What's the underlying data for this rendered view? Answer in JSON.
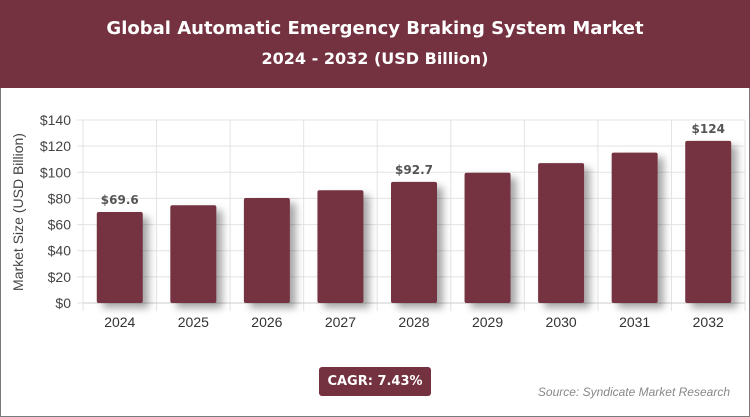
{
  "header": {
    "title": "Global Automatic Emergency Braking System Market",
    "subtitle": "2024 - 2032 (USD Billion)"
  },
  "chart_data": {
    "type": "bar",
    "title": "Global Automatic Emergency Braking System Market",
    "subtitle": "2024 - 2032 (USD Billion)",
    "xlabel": "",
    "ylabel": "Market Size (USD Billion)",
    "ylim": [
      0,
      140
    ],
    "yticks": [
      "$0",
      "$20",
      "$40",
      "$60",
      "$80",
      "$100",
      "$120",
      "$140"
    ],
    "categories": [
      "2024",
      "2025",
      "2026",
      "2027",
      "2028",
      "2029",
      "2030",
      "2031",
      "2032"
    ],
    "values": [
      69.6,
      74.8,
      80.3,
      86.3,
      92.7,
      99.6,
      107.0,
      115.0,
      124.0
    ],
    "data_labels": {
      "0": "$69.6",
      "4": "$92.7",
      "8": "$124"
    },
    "grid": true,
    "bar_color": "#74313f"
  },
  "footer": {
    "cagr": "CAGR: 7.43%",
    "source": "Source: Syndicate Market Research"
  }
}
